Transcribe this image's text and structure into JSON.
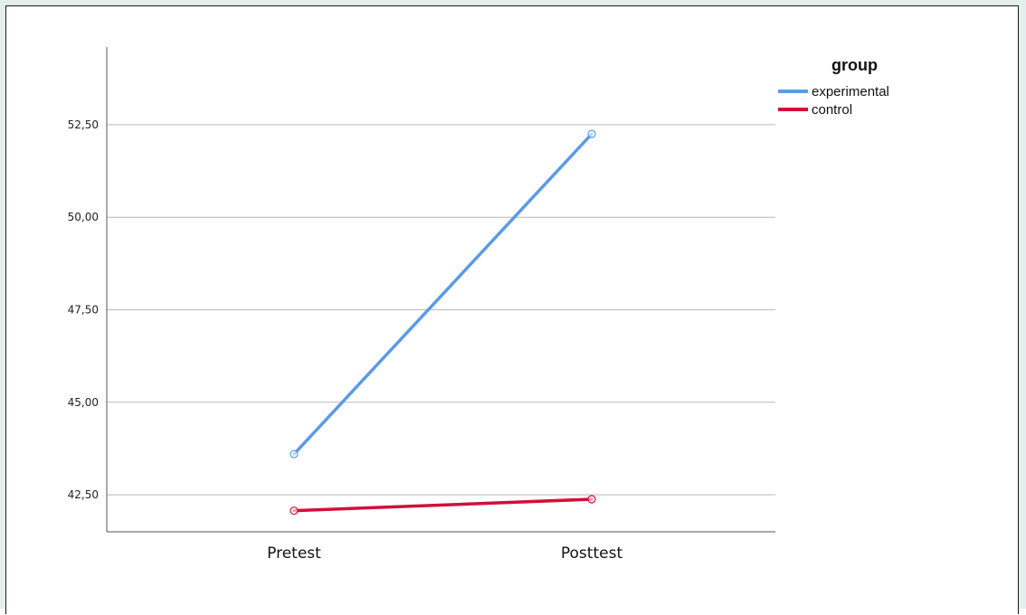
{
  "chart_data": {
    "type": "line",
    "categories": [
      "Pretest",
      "Posttest"
    ],
    "series": [
      {
        "name": "experimental",
        "values": [
          43.6,
          52.25
        ],
        "color": "#5b9be6"
      },
      {
        "name": "control",
        "values": [
          42.07,
          42.38
        ],
        "color": "#d0103a"
      }
    ],
    "ylim": [
      41.5,
      54.6
    ],
    "yticks": [
      42.5,
      45.0,
      47.5,
      50.0,
      52.5
    ],
    "ytick_labels": [
      "42,50",
      "45,00",
      "47,50",
      "50,00",
      "52,50"
    ],
    "legend": {
      "title": "group",
      "position": "top-right"
    },
    "grid": true,
    "title": "",
    "xlabel": "",
    "ylabel": ""
  }
}
